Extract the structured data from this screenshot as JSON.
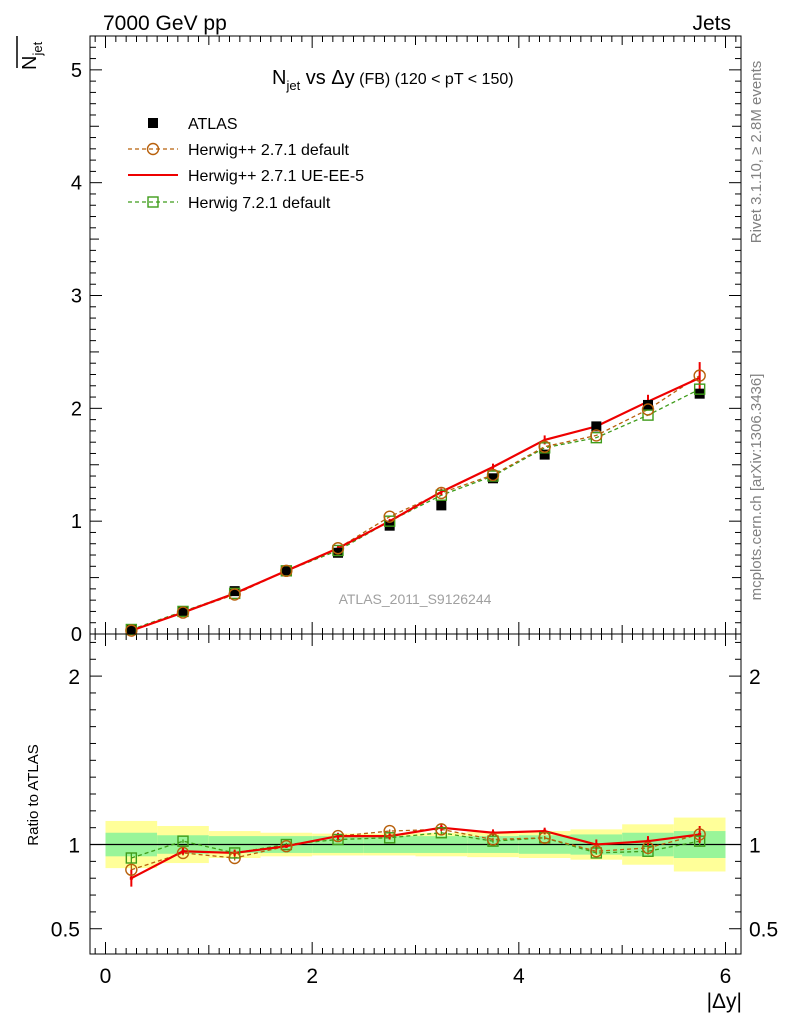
{
  "header": {
    "left": "7000 GeV pp",
    "right": "Jets"
  },
  "side_labels": {
    "rivet": "Rivet 3.1.10, ≥ 2.8M events",
    "mcplots": "mcplots.cern.ch [arXiv:1306.3436]"
  },
  "watermark": "ATLAS_2011_S9126244",
  "colors": {
    "atlas": "#000000",
    "herwig_271_default": "#b8600b",
    "herwig_271_ueee5": "#ee0000",
    "herwig_721_default": "#3f9c1a",
    "band_inner": "#99f599",
    "band_outer": "#ffff99"
  },
  "chart_data": [
    {
      "type": "scatter",
      "title_main": "N",
      "title_sub": "jet",
      "title_rest": " vs Δy",
      "title_fb": " (FB)",
      "title_range": " (120 < pT < 150)",
      "ylabel_main": "N",
      "ylabel_sub": "jet",
      "xlabel": "|Δy|",
      "xlim": [
        -0.15,
        6.15
      ],
      "ylim": [
        0,
        5.3
      ],
      "x_ticks": [
        0,
        2,
        4,
        6
      ],
      "y_ticks": [
        0,
        1,
        2,
        3,
        4,
        5
      ],
      "x": [
        0.25,
        0.75,
        1.25,
        1.75,
        2.25,
        2.75,
        3.25,
        3.75,
        4.25,
        4.75,
        5.25,
        5.75
      ],
      "legend": {
        "placement": "top-left",
        "entries": [
          "ATLAS",
          "Herwig++ 2.7.1 default",
          "Herwig++ 2.7.1 UE-EE-5",
          "Herwig 7.2.1 default"
        ]
      },
      "series": [
        {
          "name": "ATLAS",
          "marker": "filled-square",
          "values": [
            0.04,
            0.2,
            0.38,
            0.56,
            0.72,
            0.96,
            1.14,
            1.38,
            1.59,
            1.84,
            2.03,
            2.13
          ]
        },
        {
          "name": "Herwig++ 2.7.1 default",
          "marker": "open-circle",
          "line": "dashed",
          "values": [
            0.03,
            0.19,
            0.35,
            0.56,
            0.76,
            1.04,
            1.25,
            1.41,
            1.66,
            1.76,
            1.99,
            2.29
          ]
        },
        {
          "name": "Herwig++ 2.7.1 UE-EE-5",
          "marker": "none",
          "line": "solid",
          "values": [
            0.03,
            0.19,
            0.36,
            0.56,
            0.76,
            1.0,
            1.26,
            1.48,
            1.72,
            1.84,
            2.06,
            2.27
          ],
          "errors": [
            0.005,
            0.01,
            0.015,
            0.015,
            0.02,
            0.02,
            0.03,
            0.03,
            0.04,
            0.04,
            0.06,
            0.14
          ]
        },
        {
          "name": "Herwig 7.2.1 default",
          "marker": "open-square",
          "line": "dashed",
          "values": [
            0.04,
            0.2,
            0.36,
            0.56,
            0.74,
            1.0,
            1.23,
            1.4,
            1.65,
            1.74,
            1.94,
            2.17
          ]
        }
      ]
    },
    {
      "type": "scatter",
      "ylabel": "Ratio to ATLAS",
      "xlabel": "|Δy|",
      "xlim": [
        -0.15,
        6.15
      ],
      "ylim": [
        0.35,
        2.25
      ],
      "y_ticks_major": [
        0.5,
        1,
        2
      ],
      "y_tick_labels": [
        "0.5",
        "1",
        "2"
      ],
      "x": [
        0.25,
        0.75,
        1.25,
        1.75,
        2.25,
        2.75,
        3.25,
        3.75,
        4.25,
        4.75,
        5.25,
        5.75
      ],
      "x_edges": [
        0,
        0.5,
        1.0,
        1.5,
        2.0,
        2.5,
        3.0,
        3.5,
        4.0,
        4.5,
        5.0,
        5.5,
        6.0
      ],
      "band_inner": [
        0.07,
        0.055,
        0.05,
        0.05,
        0.05,
        0.05,
        0.05,
        0.05,
        0.055,
        0.06,
        0.07,
        0.08
      ],
      "band_outer": [
        0.14,
        0.11,
        0.08,
        0.07,
        0.065,
        0.065,
        0.07,
        0.075,
        0.08,
        0.09,
        0.12,
        0.16
      ],
      "series": [
        {
          "name": "Herwig++ 2.7.1 default",
          "values": [
            0.85,
            0.95,
            0.92,
            0.99,
            1.05,
            1.08,
            1.09,
            1.03,
            1.04,
            0.96,
            0.98,
            1.06
          ],
          "errors": [
            0.03,
            0.015,
            0.015,
            0.01,
            0.01,
            0.01,
            0.01,
            0.01,
            0.01,
            0.01,
            0.02,
            0.03
          ]
        },
        {
          "name": "Herwig++ 2.7.1 UE-EE-5",
          "values": [
            0.8,
            0.96,
            0.95,
            0.99,
            1.05,
            1.05,
            1.1,
            1.07,
            1.08,
            1.0,
            1.02,
            1.06
          ],
          "errors": [
            0.05,
            0.02,
            0.02,
            0.01,
            0.02,
            0.02,
            0.02,
            0.02,
            0.02,
            0.03,
            0.03,
            0.05
          ]
        },
        {
          "name": "Herwig 7.2.1 default",
          "values": [
            0.92,
            1.02,
            0.95,
            1.0,
            1.03,
            1.04,
            1.07,
            1.02,
            1.04,
            0.95,
            0.96,
            1.02
          ],
          "errors": [
            0.03,
            0.01,
            0.01,
            0.01,
            0.01,
            0.01,
            0.01,
            0.01,
            0.01,
            0.01,
            0.02,
            0.03
          ]
        }
      ]
    }
  ]
}
